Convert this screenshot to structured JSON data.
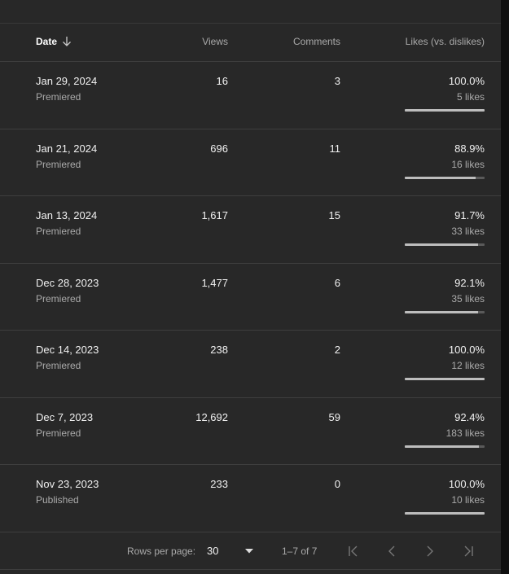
{
  "header": {
    "date": "Date",
    "views": "Views",
    "comments": "Comments",
    "likes": "Likes (vs. dislikes)"
  },
  "icons": {
    "sort": "arrow-down-icon",
    "caret": "caret-down-icon",
    "first": "first-page-icon",
    "prev": "chevron-left-icon",
    "next": "chevron-right-icon",
    "last": "last-page-icon"
  },
  "rows": [
    {
      "date": "Jan 29, 2024",
      "status": "Premiered",
      "views": "16",
      "comments": "3",
      "likes_pct": "100.0%",
      "likes_count": "5 likes",
      "ratio": 1.0
    },
    {
      "date": "Jan 21, 2024",
      "status": "Premiered",
      "views": "696",
      "comments": "11",
      "likes_pct": "88.9%",
      "likes_count": "16 likes",
      "ratio": 0.889
    },
    {
      "date": "Jan 13, 2024",
      "status": "Premiered",
      "views": "1,617",
      "comments": "15",
      "likes_pct": "91.7%",
      "likes_count": "33 likes",
      "ratio": 0.917
    },
    {
      "date": "Dec 28, 2023",
      "status": "Premiered",
      "views": "1,477",
      "comments": "6",
      "likes_pct": "92.1%",
      "likes_count": "35 likes",
      "ratio": 0.921
    },
    {
      "date": "Dec 14, 2023",
      "status": "Premiered",
      "views": "238",
      "comments": "2",
      "likes_pct": "100.0%",
      "likes_count": "12 likes",
      "ratio": 1.0
    },
    {
      "date": "Dec 7, 2023",
      "status": "Premiered",
      "views": "12,692",
      "comments": "59",
      "likes_pct": "92.4%",
      "likes_count": "183 likes",
      "ratio": 0.924
    },
    {
      "date": "Nov 23, 2023",
      "status": "Published",
      "views": "233",
      "comments": "0",
      "likes_pct": "100.0%",
      "likes_count": "10 likes",
      "ratio": 1.0
    }
  ],
  "footer": {
    "rows_per_page_label": "Rows per page:",
    "rows_per_page_value": "30",
    "range": "1–7 of 7"
  }
}
